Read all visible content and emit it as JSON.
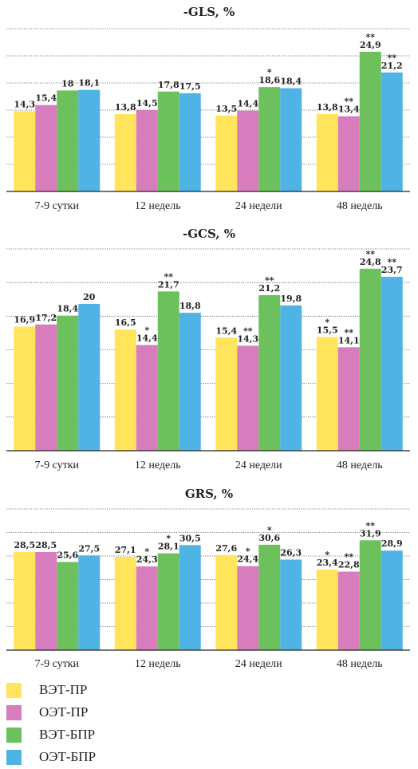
{
  "colors": [
    "#FFE45C",
    "#D77DBE",
    "#6CC15D",
    "#4FB4E5"
  ],
  "chart_data": [
    {
      "type": "bar",
      "title": "-GLS, %",
      "categories": [
        "7-9 сутки",
        "12 недель",
        "24 недели",
        "48 недель"
      ],
      "ylim": [
        0,
        29
      ],
      "grid": true,
      "series": [
        {
          "name": "ВЭТ-ПР",
          "values": [
            14.3,
            13.8,
            13.5,
            13.8
          ],
          "labels": [
            "14,3",
            "13,8",
            "13,5",
            "13,8"
          ],
          "marks": [
            "",
            "",
            "",
            ""
          ]
        },
        {
          "name": "ОЭТ-ПР",
          "values": [
            15.4,
            14.5,
            14.4,
            13.4
          ],
          "labels": [
            "15,4",
            "14,5",
            "14,4",
            "13,4"
          ],
          "marks": [
            "",
            "",
            "",
            "**"
          ]
        },
        {
          "name": "ВЭТ-БПР",
          "values": [
            18,
            17.8,
            18.6,
            24.9
          ],
          "labels": [
            "18",
            "17,8",
            "18,6",
            "24,9"
          ],
          "marks": [
            "",
            "",
            "*",
            "**"
          ]
        },
        {
          "name": "ОЭТ-БПР",
          "values": [
            18.1,
            17.5,
            18.4,
            21.2
          ],
          "labels": [
            "18,1",
            "17,5",
            "18,4",
            "21,2"
          ],
          "marks": [
            "",
            "",
            "",
            "**"
          ]
        }
      ]
    },
    {
      "type": "bar",
      "title": "-GCS, %",
      "categories": [
        "7-9 сутки",
        "12 недель",
        "24 недели",
        "48 недель"
      ],
      "ylim": [
        0,
        27.5
      ],
      "grid": true,
      "series": [
        {
          "name": "ВЭТ-ПР",
          "values": [
            16.9,
            16.5,
            15.4,
            15.5
          ],
          "labels": [
            "16,9",
            "16,5",
            "15,4",
            "15,5"
          ],
          "marks": [
            "",
            "",
            "",
            "*"
          ]
        },
        {
          "name": "ОЭТ-ПР",
          "values": [
            17.2,
            14.4,
            14.3,
            14.1
          ],
          "labels": [
            "17,2",
            "14,4",
            "14,3",
            "14,1"
          ],
          "marks": [
            "",
            "*",
            "**",
            "**"
          ]
        },
        {
          "name": "ВЭТ-БПР",
          "values": [
            18.4,
            21.7,
            21.2,
            24.8
          ],
          "labels": [
            "18,4",
            "21,7",
            "21,2",
            "24,8"
          ],
          "marks": [
            "",
            "**",
            "**",
            "**"
          ]
        },
        {
          "name": "ОЭТ-БПР",
          "values": [
            20,
            18.8,
            19.8,
            23.7
          ],
          "labels": [
            "20",
            "18,8",
            "19,8",
            "23,7"
          ],
          "marks": [
            "",
            "",
            "",
            "**"
          ]
        }
      ]
    },
    {
      "type": "bar",
      "title": "GRS, %",
      "categories": [
        "7-9 сутки",
        "12 недель",
        "24 недели",
        "48 недель"
      ],
      "ylim": [
        0,
        41
      ],
      "grid": true,
      "series": [
        {
          "name": "ВЭТ-ПР",
          "values": [
            28.5,
            27.1,
            27.6,
            23.4
          ],
          "labels": [
            "28,5",
            "27,1",
            "27,6",
            "23,4"
          ],
          "marks": [
            "",
            "",
            "",
            "*"
          ]
        },
        {
          "name": "ОЭТ-ПР",
          "values": [
            28.5,
            24.3,
            24.4,
            22.8
          ],
          "labels": [
            "28,5",
            "24,3",
            "24,4",
            "22,8"
          ],
          "marks": [
            "",
            "*",
            "*",
            "**"
          ]
        },
        {
          "name": "ВЭТ-БПР",
          "values": [
            25.6,
            28.1,
            30.6,
            31.9
          ],
          "labels": [
            "25,6",
            "28,1",
            "30,6",
            "31,9"
          ],
          "marks": [
            "",
            "*",
            "*",
            "**"
          ]
        },
        {
          "name": "ОЭТ-БПР",
          "values": [
            27.5,
            30.5,
            26.3,
            28.9
          ],
          "labels": [
            "27,5",
            "30,5",
            "26,3",
            "28,9"
          ],
          "marks": [
            "",
            "",
            "",
            ""
          ]
        }
      ]
    }
  ],
  "legend": {
    "items": [
      {
        "label": "ВЭТ-ПР"
      },
      {
        "label": "ОЭТ-ПР"
      },
      {
        "label": "ВЭТ-БПР"
      },
      {
        "label": "ОЭТ-БПР"
      }
    ]
  }
}
